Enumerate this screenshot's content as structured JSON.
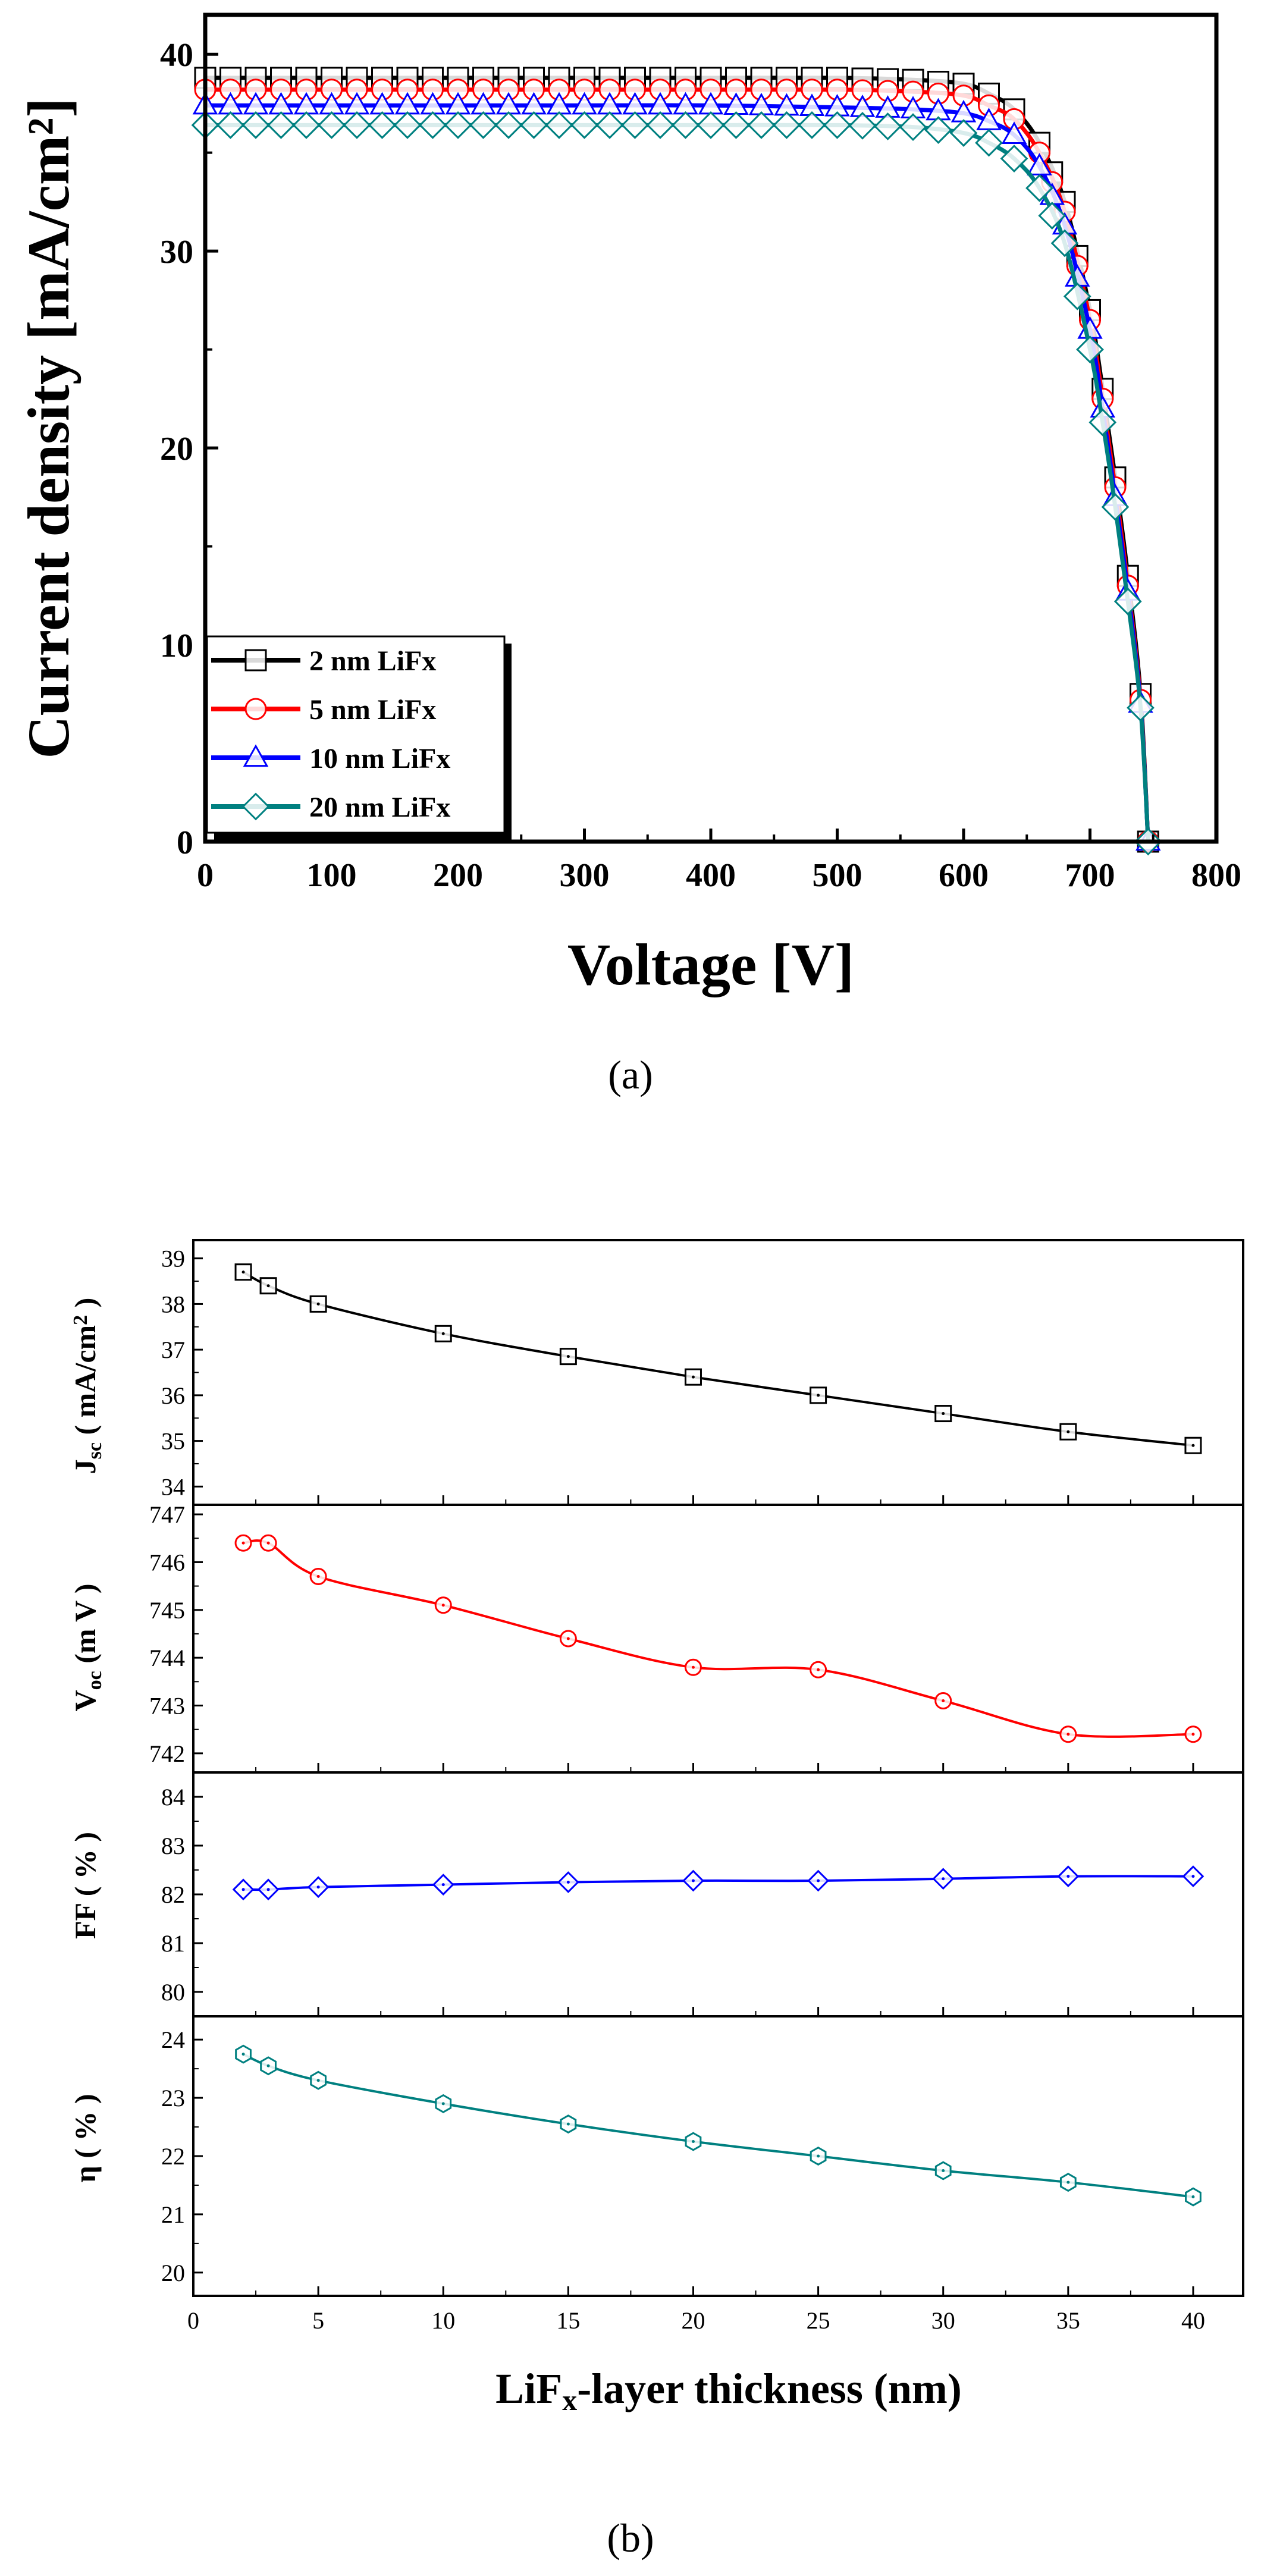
{
  "figure_a": {
    "caption": "(a)",
    "chart_data": {
      "type": "line",
      "xlabel": "Voltage [V]",
      "ylabel": "Current density [mA/cm²]",
      "xlim": [
        0,
        800
      ],
      "ylim": [
        0,
        42
      ],
      "xticks": [
        0,
        100,
        200,
        300,
        400,
        500,
        600,
        700,
        800
      ],
      "yticks": [
        0,
        10,
        20,
        30,
        40
      ],
      "grid": false,
      "legend_position": "bottom-left",
      "series": [
        {
          "name": "2 nm LiFx",
          "color": "#000000",
          "marker": "square",
          "x": [
            0,
            100,
            200,
            300,
            400,
            500,
            560,
            600,
            620,
            640,
            660,
            680,
            700,
            710,
            720,
            730,
            740,
            746
          ],
          "y": [
            38.8,
            38.8,
            38.8,
            38.8,
            38.8,
            38.8,
            38.7,
            38.5,
            38.0,
            37.2,
            35.5,
            32.5,
            27.0,
            23.0,
            18.5,
            13.5,
            7.5,
            0
          ]
        },
        {
          "name": "5 nm LiFx",
          "color": "#ff0000",
          "marker": "circle",
          "x": [
            0,
            100,
            200,
            300,
            400,
            500,
            560,
            600,
            620,
            640,
            660,
            680,
            700,
            710,
            720,
            730,
            740,
            746
          ],
          "y": [
            38.2,
            38.2,
            38.2,
            38.2,
            38.2,
            38.2,
            38.1,
            37.9,
            37.4,
            36.7,
            35.0,
            32.0,
            26.5,
            22.5,
            18.0,
            13.0,
            7.2,
            0
          ]
        },
        {
          "name": "10 nm LiFx",
          "color": "#0000ff",
          "marker": "triangle",
          "x": [
            0,
            100,
            200,
            300,
            400,
            500,
            560,
            600,
            620,
            640,
            660,
            680,
            700,
            710,
            720,
            730,
            740,
            746
          ],
          "y": [
            37.4,
            37.4,
            37.4,
            37.4,
            37.4,
            37.3,
            37.2,
            37.0,
            36.6,
            35.9,
            34.3,
            31.3,
            26.0,
            22.0,
            17.5,
            12.7,
            7.0,
            0
          ]
        },
        {
          "name": "20 nm LiFx",
          "color": "#008080",
          "marker": "diamond",
          "x": [
            0,
            100,
            200,
            300,
            400,
            500,
            560,
            600,
            620,
            640,
            660,
            680,
            700,
            710,
            720,
            730,
            740,
            746
          ],
          "y": [
            36.4,
            36.4,
            36.4,
            36.4,
            36.4,
            36.4,
            36.3,
            36.0,
            35.5,
            34.7,
            33.2,
            30.4,
            25.0,
            21.3,
            17.0,
            12.2,
            6.8,
            0
          ]
        }
      ]
    }
  },
  "figure_b": {
    "caption": "(b)",
    "chart_data": {
      "type": "line",
      "xlabel": "LiFx-layer thickness (nm)",
      "xlim": [
        0,
        42
      ],
      "xticks": [
        0,
        5,
        10,
        15,
        20,
        25,
        30,
        35,
        40
      ],
      "x": [
        2,
        3,
        5,
        10,
        15,
        20,
        25,
        30,
        35,
        40
      ],
      "grid": false,
      "panels": [
        {
          "ylabel": "Jsc (mA/cm2)",
          "color": "#000000",
          "marker": "square",
          "ylim": [
            33.6,
            39.4
          ],
          "yticks": [
            34,
            35,
            36,
            37,
            38,
            39
          ],
          "values": [
            38.7,
            38.4,
            38.0,
            37.35,
            36.85,
            36.4,
            36.0,
            35.6,
            35.2,
            34.9
          ]
        },
        {
          "ylabel": "Voc (mV)",
          "color": "#ff0000",
          "marker": "circle",
          "ylim": [
            741.6,
            747.2
          ],
          "yticks": [
            742,
            743,
            744,
            745,
            746,
            747
          ],
          "values": [
            746.4,
            746.4,
            745.7,
            745.1,
            744.4,
            743.8,
            743.75,
            743.1,
            742.4,
            742.4
          ]
        },
        {
          "ylabel": "FF (%)",
          "color": "#0000ff",
          "marker": "diamond",
          "ylim": [
            79.5,
            84.5
          ],
          "yticks": [
            80,
            81,
            82,
            83,
            84
          ],
          "values": [
            82.1,
            82.1,
            82.15,
            82.2,
            82.25,
            82.28,
            82.28,
            82.32,
            82.37,
            82.37
          ]
        },
        {
          "ylabel": "η (%)",
          "color": "#008080",
          "marker": "hexagon",
          "ylim": [
            19.6,
            24.4
          ],
          "yticks": [
            20,
            21,
            22,
            23,
            24
          ],
          "values": [
            23.75,
            23.55,
            23.3,
            22.9,
            22.55,
            22.25,
            22.0,
            21.75,
            21.55,
            21.3
          ]
        }
      ]
    }
  }
}
